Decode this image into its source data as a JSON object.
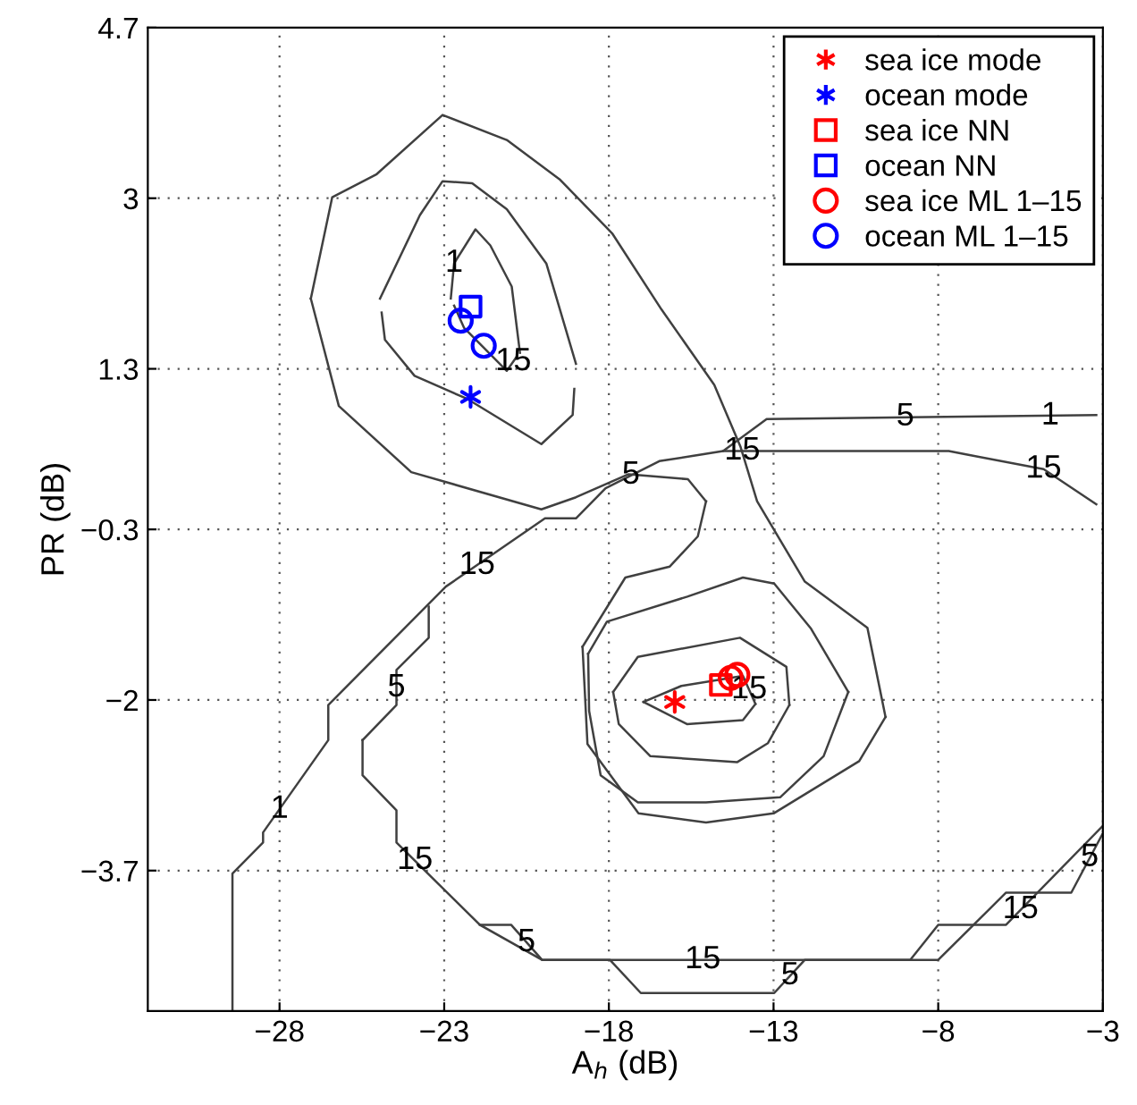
{
  "chart_data": {
    "type": "scatter",
    "xlabel": "A$_{h}$ (dB)",
    "ylabel": "PR (dB)",
    "xlim": [
      -32,
      -3
    ],
    "ylim": [
      -5.1,
      4.7
    ],
    "xticks": [
      {
        "value": -28,
        "label": "−28"
      },
      {
        "value": -23,
        "label": "−23"
      },
      {
        "value": -18,
        "label": "−18"
      },
      {
        "value": -13,
        "label": "−13"
      },
      {
        "value": -8,
        "label": "−8"
      },
      {
        "value": -3,
        "label": "−3"
      }
    ],
    "yticks": [
      {
        "value": -3.7,
        "label": "−3.7"
      },
      {
        "value": -2,
        "label": "−2"
      },
      {
        "value": -0.3,
        "label": "−0.3"
      },
      1.3,
      3,
      4.7
    ],
    "grid": true,
    "legend": "top right",
    "series": [
      {
        "type": "line",
        "color": "#404040",
        "marker": "none",
        "x": [
          -27.05,
          -26.4,
          -25.05,
          -23.05,
          -21.1,
          -19.5,
          -17.9,
          -16.4,
          -14.8,
          -14.0,
          -13.5,
          -12.05,
          -10.15,
          -9.6
        ],
        "values": [
          2.0,
          3.01,
          3.24,
          3.83,
          3.58,
          3.19,
          2.65,
          1.89,
          1.14,
          0.52,
          -0.02,
          -0.82,
          -1.28,
          -2.17
        ]
      },
      {
        "type": "line",
        "color": "#404040",
        "marker": "none",
        "x": [
          -18.8,
          -18.65,
          -17.1,
          -15.05,
          -13.0,
          -10.4,
          -9.6
        ],
        "values": [
          -1.47,
          -2.44,
          -3.13,
          -3.22,
          -3.13,
          -2.61,
          -2.17
        ]
      },
      {
        "type": "line",
        "color": "#404040",
        "marker": "none",
        "x": [
          -18.8,
          -17.5,
          -16.15,
          -15.3,
          -15.05
        ],
        "values": [
          -1.47,
          -0.78,
          -0.67,
          -0.37,
          -0.02
        ]
      },
      {
        "type": "line",
        "color": "#404040",
        "marker": "none",
        "x": [
          -27.05,
          -26.2,
          -24.0,
          -20.05,
          -19.0,
          -17.4,
          -15.6,
          -15.05
        ],
        "values": [
          2.0,
          0.93,
          0.27,
          -0.1,
          0.02,
          0.25,
          0.2,
          -0.02
        ]
      },
      {
        "type": "line",
        "color": "#404040",
        "marker": "none",
        "x": [
          -24.95,
          -23.74,
          -23.05,
          -22.15,
          -21.1,
          -19.9,
          -19.0
        ],
        "values": [
          2.0,
          2.83,
          3.17,
          3.15,
          2.89,
          2.35,
          1.35
        ]
      },
      {
        "type": "line",
        "color": "#404040",
        "marker": "none",
        "x": [
          -24.9,
          -24.8,
          -23.9,
          -22.3,
          -20.05,
          -19.1,
          -19.05
        ],
        "values": [
          1.86,
          1.59,
          1.23,
          1.0,
          0.55,
          0.84,
          1.1
        ]
      },
      {
        "type": "line",
        "color": "#404040",
        "marker": "none",
        "x": [
          -22.8,
          -22.7,
          -22.05,
          -21.6,
          -20.95,
          -20.7
        ],
        "values": [
          2.0,
          2.35,
          2.69,
          2.53,
          2.12,
          1.46
        ]
      },
      {
        "type": "line",
        "color": "#404040",
        "marker": "none",
        "x": [
          -22.7,
          -22.4,
          -21.1,
          -20.8
        ],
        "values": [
          1.93,
          1.71,
          1.28,
          1.42
        ]
      },
      {
        "type": "line",
        "color": "#404040",
        "marker": "none",
        "x": [
          -16.95,
          -15.8,
          -13.93,
          -13.55
        ],
        "values": [
          -2.02,
          -1.86,
          -1.76,
          -2.04
        ]
      },
      {
        "type": "line",
        "color": "#404040",
        "marker": "none",
        "x": [
          -16.95,
          -15.63,
          -13.93,
          -13.55
        ],
        "values": [
          -2.02,
          -2.24,
          -2.2,
          -2.04
        ]
      },
      {
        "type": "line",
        "color": "#404040",
        "marker": "none",
        "x": [
          -17.87,
          -17.12,
          -14.02,
          -12.61,
          -12.52
        ],
        "values": [
          -1.92,
          -1.57,
          -1.38,
          -1.67,
          -2.05
        ]
      },
      {
        "type": "line",
        "color": "#404040",
        "marker": "none",
        "x": [
          -17.87,
          -17.7,
          -16.74,
          -14.11,
          -13.17,
          -12.52
        ],
        "values": [
          -1.92,
          -2.24,
          -2.56,
          -2.62,
          -2.43,
          -2.05
        ]
      },
      {
        "type": "line",
        "color": "#404040",
        "marker": "none",
        "x": [
          -18.63,
          -18.06,
          -15.62,
          -13.93,
          -12.98,
          -11.86,
          -10.73
        ],
        "values": [
          -1.54,
          -1.22,
          -0.97,
          -0.78,
          -0.84,
          -1.29,
          -1.92
        ]
      },
      {
        "type": "line",
        "color": "#404040",
        "marker": "none",
        "x": [
          -18.63,
          -18.6,
          -18.25,
          -17.12,
          -15.05,
          -12.8,
          -11.48,
          -10.73
        ],
        "values": [
          -1.54,
          -2.11,
          -2.75,
          -3.02,
          -3.02,
          -2.97,
          -2.56,
          -1.92
        ]
      },
      {
        "type": "line",
        "color": "#404040",
        "marker": "none",
        "x": [
          -29.43,
          -29.43,
          -28.5,
          -28.5,
          -26.52,
          -26.52,
          -22.95,
          -19.94,
          -19.0,
          -18.1,
          -16.47,
          -14.53,
          -13.21,
          -3.2
        ],
        "values": [
          -5.1,
          -3.73,
          -3.42,
          -3.32,
          -2.4,
          -2.05,
          -0.87,
          -0.19,
          -0.19,
          0.11,
          0.38,
          0.48,
          0.8,
          0.84
        ]
      },
      {
        "type": "line",
        "color": "#404040",
        "marker": "none",
        "x": [
          -25.48,
          -24.45,
          -24.45,
          -23.47,
          -23.47
        ],
        "values": [
          -2.4,
          -2.05,
          -1.7,
          -1.38,
          -1.07
        ]
      },
      {
        "type": "line",
        "color": "#404040",
        "marker": "none",
        "x": [
          -25.48,
          -25.48,
          -24.45,
          -24.45,
          -21.92,
          -20.97,
          -20.03,
          -17.97,
          -17.03,
          -12.98,
          -12.05,
          -8.0,
          -5.94,
          -3.96,
          -3.02
        ],
        "values": [
          -2.4,
          -2.75,
          -3.1,
          -3.42,
          -4.24,
          -4.24,
          -4.59,
          -4.59,
          -4.92,
          -4.92,
          -4.59,
          -4.59,
          -3.92,
          -3.92,
          -3.34
        ]
      },
      {
        "type": "line",
        "color": "#404040",
        "marker": "none",
        "x": [
          -21.92,
          -20.03,
          -8.85,
          -8.0,
          -5.94,
          -3.02
        ],
        "values": [
          -4.24,
          -4.59,
          -4.59,
          -4.24,
          -4.24,
          -3.26
        ]
      },
      {
        "type": "line",
        "color": "#404040",
        "marker": "none",
        "x": [
          -14.53,
          -7.68,
          -4.8,
          -3.2
        ],
        "values": [
          0.48,
          0.48,
          0.3,
          -0.05
        ]
      },
      {
        "name": "sea ice mode",
        "color": "#ff0000",
        "marker": "cross",
        "x": [
          -16.0
        ],
        "values": [
          -2.02
        ]
      },
      {
        "name": "ocean mode",
        "color": "#0000ff",
        "marker": "cross",
        "x": [
          -22.2
        ],
        "values": [
          1.02
        ]
      },
      {
        "name": "sea ice NN",
        "color": "#ff0000",
        "marker": "square",
        "x": [
          -14.6
        ],
        "values": [
          -1.85
        ]
      },
      {
        "name": "ocean NN",
        "color": "#0000ff",
        "marker": "square",
        "x": [
          -22.2
        ],
        "values": [
          1.92
        ]
      },
      {
        "name": "sea ice ML 1–15",
        "color": "#ff0000",
        "marker": "circle",
        "x": [
          -14.3,
          -14.1
        ],
        "values": [
          -1.78,
          -1.75
        ]
      },
      {
        "name": "ocean ML 1–15",
        "color": "#0000ff",
        "marker": "circle",
        "x": [
          -22.5,
          -21.8
        ],
        "values": [
          1.78,
          1.53
        ]
      }
    ],
    "annotations": [
      {
        "text": "15",
        "x": -20.9,
        "y": 1.37
      },
      {
        "text": "1",
        "x": -22.7,
        "y": 2.35
      },
      {
        "text": "15",
        "x": -13.74,
        "y": -1.9
      },
      {
        "text": "1",
        "x": -28.0,
        "y": -3.09
      },
      {
        "text": "15",
        "x": -22.0,
        "y": -0.66
      },
      {
        "text": "5",
        "x": -24.45,
        "y": -1.88
      },
      {
        "text": "15",
        "x": -23.89,
        "y": -3.6
      },
      {
        "text": "5",
        "x": -20.5,
        "y": -4.42
      },
      {
        "text": "15",
        "x": -15.15,
        "y": -4.59
      },
      {
        "text": "5",
        "x": -12.5,
        "y": -4.75
      },
      {
        "text": "15",
        "x": -5.5,
        "y": -4.09
      },
      {
        "text": "5",
        "x": -3.4,
        "y": -3.57
      },
      {
        "text": "15",
        "x": -13.95,
        "y": 0.48
      },
      {
        "text": "5",
        "x": -9.0,
        "y": 0.82
      },
      {
        "text": "1",
        "x": -4.6,
        "y": 0.83
      },
      {
        "text": "15",
        "x": -4.8,
        "y": 0.3
      },
      {
        "text": "5",
        "x": -17.33,
        "y": 0.24
      }
    ]
  }
}
